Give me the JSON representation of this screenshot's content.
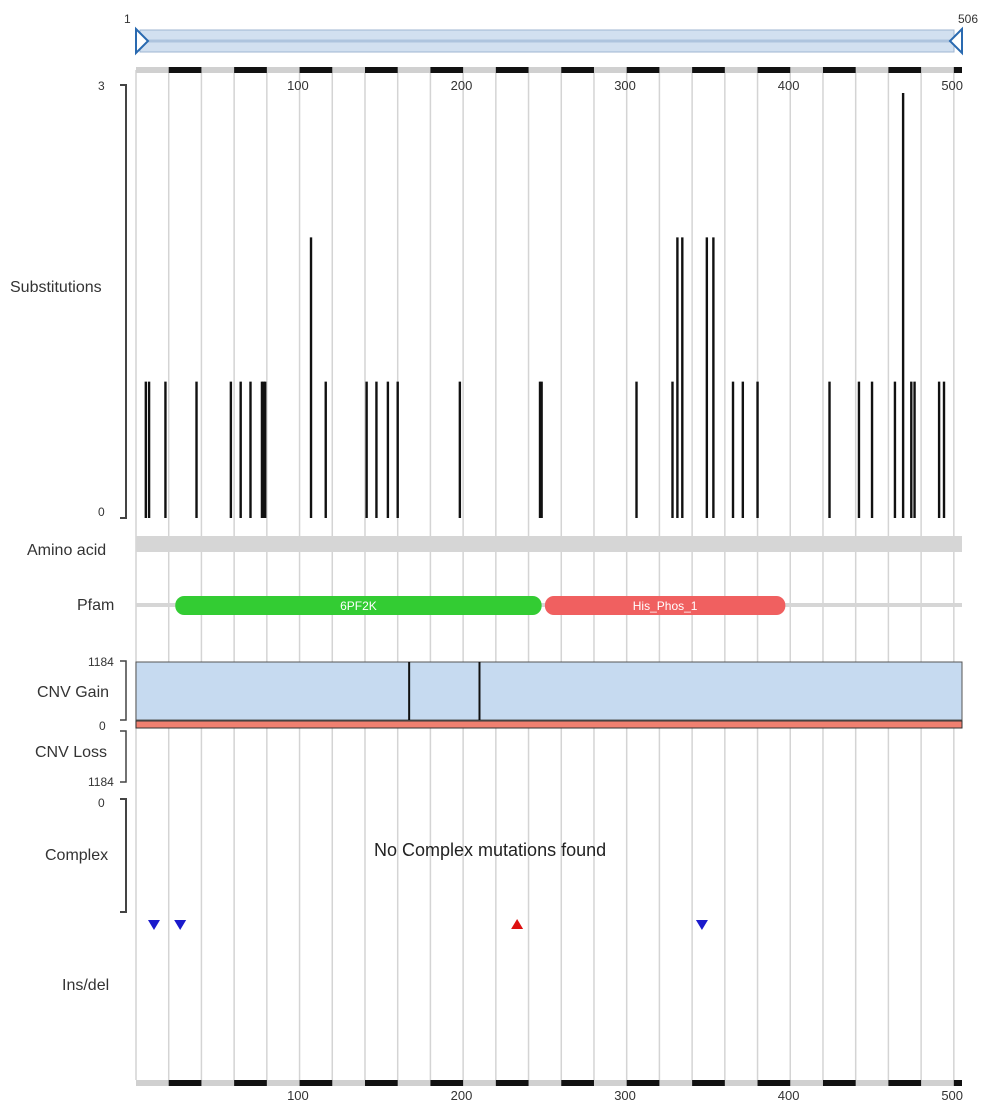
{
  "chart_data": {
    "type": "protein-mutation-track",
    "sequence_length": 506,
    "zoom_range_labels": {
      "start": "1",
      "end": "506"
    },
    "position_axis": {
      "range": [
        1,
        506
      ],
      "ticks": [
        100,
        200,
        300,
        400,
        500
      ],
      "tick_labels": [
        "100",
        "200",
        "300",
        "400",
        "500"
      ]
    },
    "substitutions": {
      "label": "Substitutions",
      "ylim": [
        0,
        3
      ],
      "y_tick_labels": {
        "min": "0",
        "max": "3"
      },
      "mutations": [
        {
          "position": 7,
          "count": 1
        },
        {
          "position": 9,
          "count": 1
        },
        {
          "position": 19,
          "count": 1
        },
        {
          "position": 38,
          "count": 1
        },
        {
          "position": 59,
          "count": 1
        },
        {
          "position": 65,
          "count": 1
        },
        {
          "position": 71,
          "count": 1
        },
        {
          "position": 78,
          "count": 1
        },
        {
          "position": 79,
          "count": 1
        },
        {
          "position": 80,
          "count": 1
        },
        {
          "position": 108,
          "count": 2
        },
        {
          "position": 117,
          "count": 1
        },
        {
          "position": 142,
          "count": 1
        },
        {
          "position": 148,
          "count": 1
        },
        {
          "position": 155,
          "count": 1
        },
        {
          "position": 161,
          "count": 1
        },
        {
          "position": 199,
          "count": 1
        },
        {
          "position": 248,
          "count": 1
        },
        {
          "position": 249,
          "count": 1
        },
        {
          "position": 307,
          "count": 1
        },
        {
          "position": 329,
          "count": 1
        },
        {
          "position": 332,
          "count": 2
        },
        {
          "position": 335,
          "count": 2
        },
        {
          "position": 350,
          "count": 2
        },
        {
          "position": 354,
          "count": 2
        },
        {
          "position": 366,
          "count": 1
        },
        {
          "position": 372,
          "count": 1
        },
        {
          "position": 381,
          "count": 1
        },
        {
          "position": 425,
          "count": 1
        },
        {
          "position": 443,
          "count": 1
        },
        {
          "position": 451,
          "count": 1
        },
        {
          "position": 465,
          "count": 1
        },
        {
          "position": 470,
          "count": 3
        },
        {
          "position": 475,
          "count": 1
        },
        {
          "position": 477,
          "count": 1
        },
        {
          "position": 492,
          "count": 1
        },
        {
          "position": 495,
          "count": 1
        }
      ]
    },
    "amino_acid": {
      "label": "Amino acid"
    },
    "pfam": {
      "label": "Pfam",
      "domains": [
        {
          "name": "6PF2K",
          "start": 25,
          "end": 249,
          "color": "#33cc33"
        },
        {
          "name": "His_Phos_1",
          "start": 251,
          "end": 398,
          "color": "#f06060"
        }
      ]
    },
    "cnv": {
      "gain_label": "CNV Gain",
      "loss_label": "CNV Loss",
      "scale_labels": {
        "gain_max": "1184",
        "zero": "0",
        "loss_max": "1184"
      },
      "gain_color": "#c6daf0",
      "loss_color": "#f08070",
      "segment_breaks": [
        168,
        211
      ]
    },
    "complex": {
      "label": "Complex",
      "y_tick_label": "0",
      "message": "No Complex mutations found"
    },
    "insdel": {
      "label": "Ins/del",
      "events": [
        {
          "position": 12,
          "kind": "deletion",
          "color": "#1a1acc"
        },
        {
          "position": 28,
          "kind": "deletion",
          "color": "#1a1acc"
        },
        {
          "position": 234,
          "kind": "insertion",
          "color": "#dd1111"
        },
        {
          "position": 347,
          "kind": "deletion",
          "color": "#1a1acc"
        }
      ]
    }
  }
}
